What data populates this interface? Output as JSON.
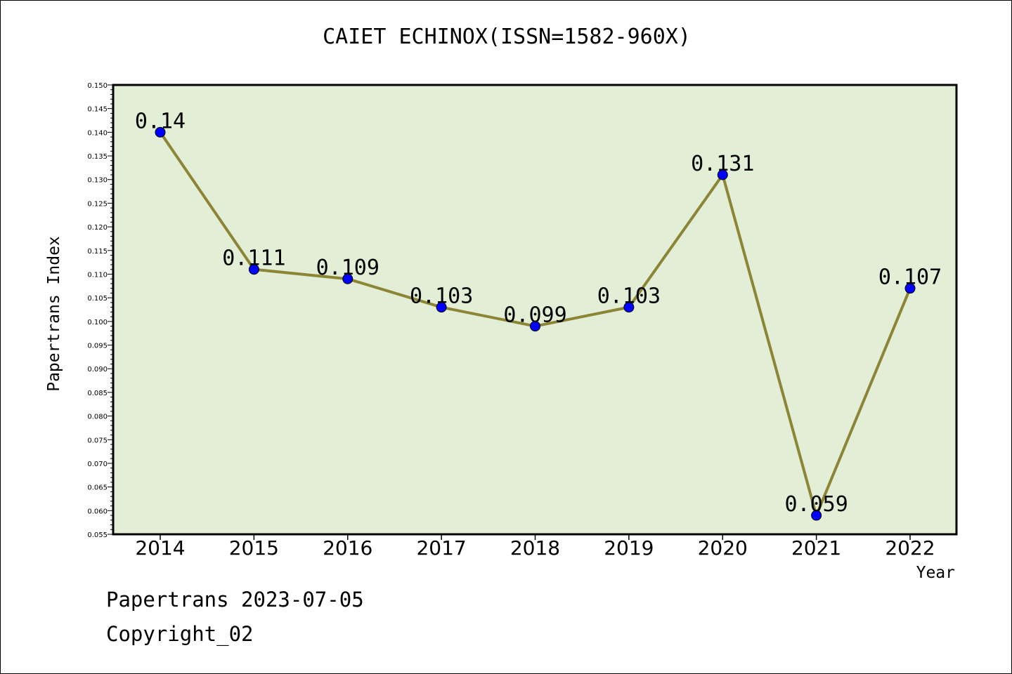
{
  "title": "CAIET ECHINOX(ISSN=1582-960X)",
  "footer": {
    "line1": "Papertrans 2023-07-05",
    "line2": "Copyright_02"
  },
  "colors": {
    "plot_background": "#e2efd6",
    "line": "#8b8535",
    "marker": "#0000ff"
  },
  "chart_data": {
    "type": "line",
    "title": "CAIET ECHINOX(ISSN=1582-960X)",
    "xlabel": "Year",
    "ylabel": "Papertrans Index",
    "categories": [
      "2014",
      "2015",
      "2016",
      "2017",
      "2018",
      "2019",
      "2020",
      "2021",
      "2022"
    ],
    "series": [
      {
        "values": [
          0.14,
          0.111,
          0.109,
          0.103,
          0.099,
          0.103,
          0.131,
          0.059,
          0.107
        ]
      }
    ],
    "data_labels": [
      "0.14",
      "0.111",
      "0.109",
      "0.103",
      "0.099",
      "0.103",
      "0.131",
      "0.059",
      "0.107"
    ],
    "ylim": [
      0.055,
      0.15
    ],
    "yticks": [
      "0.055",
      "0.060",
      "0.065",
      "0.070",
      "0.075",
      "0.080",
      "0.085",
      "0.090",
      "0.095",
      "0.100",
      "0.105",
      "0.110",
      "0.115",
      "0.120",
      "0.125",
      "0.130",
      "0.135",
      "0.140",
      "0.145",
      "0.150"
    ],
    "grid": false,
    "legend": "none"
  }
}
